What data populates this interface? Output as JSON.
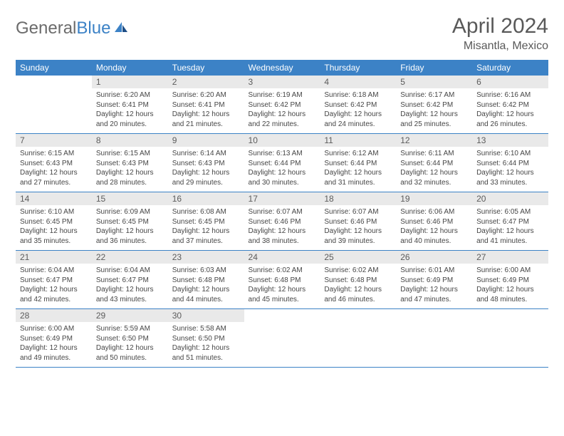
{
  "brand": {
    "textGray": "General",
    "textBlue": "Blue"
  },
  "title": "April 2024",
  "location": "Misantla, Mexico",
  "colors": {
    "headerBg": "#3c82c6",
    "headerText": "#ffffff",
    "dayNumBg": "#e9e9e9",
    "bodyText": "#464646",
    "pageBg": "#ffffff",
    "titleText": "#595959"
  },
  "weekdays": [
    "Sunday",
    "Monday",
    "Tuesday",
    "Wednesday",
    "Thursday",
    "Friday",
    "Saturday"
  ],
  "grid": [
    [
      null,
      {
        "n": "1",
        "sr": "6:20 AM",
        "ss": "6:41 PM",
        "dl": "12 hours and 20 minutes."
      },
      {
        "n": "2",
        "sr": "6:20 AM",
        "ss": "6:41 PM",
        "dl": "12 hours and 21 minutes."
      },
      {
        "n": "3",
        "sr": "6:19 AM",
        "ss": "6:42 PM",
        "dl": "12 hours and 22 minutes."
      },
      {
        "n": "4",
        "sr": "6:18 AM",
        "ss": "6:42 PM",
        "dl": "12 hours and 24 minutes."
      },
      {
        "n": "5",
        "sr": "6:17 AM",
        "ss": "6:42 PM",
        "dl": "12 hours and 25 minutes."
      },
      {
        "n": "6",
        "sr": "6:16 AM",
        "ss": "6:42 PM",
        "dl": "12 hours and 26 minutes."
      }
    ],
    [
      {
        "n": "7",
        "sr": "6:15 AM",
        "ss": "6:43 PM",
        "dl": "12 hours and 27 minutes."
      },
      {
        "n": "8",
        "sr": "6:15 AM",
        "ss": "6:43 PM",
        "dl": "12 hours and 28 minutes."
      },
      {
        "n": "9",
        "sr": "6:14 AM",
        "ss": "6:43 PM",
        "dl": "12 hours and 29 minutes."
      },
      {
        "n": "10",
        "sr": "6:13 AM",
        "ss": "6:44 PM",
        "dl": "12 hours and 30 minutes."
      },
      {
        "n": "11",
        "sr": "6:12 AM",
        "ss": "6:44 PM",
        "dl": "12 hours and 31 minutes."
      },
      {
        "n": "12",
        "sr": "6:11 AM",
        "ss": "6:44 PM",
        "dl": "12 hours and 32 minutes."
      },
      {
        "n": "13",
        "sr": "6:10 AM",
        "ss": "6:44 PM",
        "dl": "12 hours and 33 minutes."
      }
    ],
    [
      {
        "n": "14",
        "sr": "6:10 AM",
        "ss": "6:45 PM",
        "dl": "12 hours and 35 minutes."
      },
      {
        "n": "15",
        "sr": "6:09 AM",
        "ss": "6:45 PM",
        "dl": "12 hours and 36 minutes."
      },
      {
        "n": "16",
        "sr": "6:08 AM",
        "ss": "6:45 PM",
        "dl": "12 hours and 37 minutes."
      },
      {
        "n": "17",
        "sr": "6:07 AM",
        "ss": "6:46 PM",
        "dl": "12 hours and 38 minutes."
      },
      {
        "n": "18",
        "sr": "6:07 AM",
        "ss": "6:46 PM",
        "dl": "12 hours and 39 minutes."
      },
      {
        "n": "19",
        "sr": "6:06 AM",
        "ss": "6:46 PM",
        "dl": "12 hours and 40 minutes."
      },
      {
        "n": "20",
        "sr": "6:05 AM",
        "ss": "6:47 PM",
        "dl": "12 hours and 41 minutes."
      }
    ],
    [
      {
        "n": "21",
        "sr": "6:04 AM",
        "ss": "6:47 PM",
        "dl": "12 hours and 42 minutes."
      },
      {
        "n": "22",
        "sr": "6:04 AM",
        "ss": "6:47 PM",
        "dl": "12 hours and 43 minutes."
      },
      {
        "n": "23",
        "sr": "6:03 AM",
        "ss": "6:48 PM",
        "dl": "12 hours and 44 minutes."
      },
      {
        "n": "24",
        "sr": "6:02 AM",
        "ss": "6:48 PM",
        "dl": "12 hours and 45 minutes."
      },
      {
        "n": "25",
        "sr": "6:02 AM",
        "ss": "6:48 PM",
        "dl": "12 hours and 46 minutes."
      },
      {
        "n": "26",
        "sr": "6:01 AM",
        "ss": "6:49 PM",
        "dl": "12 hours and 47 minutes."
      },
      {
        "n": "27",
        "sr": "6:00 AM",
        "ss": "6:49 PM",
        "dl": "12 hours and 48 minutes."
      }
    ],
    [
      {
        "n": "28",
        "sr": "6:00 AM",
        "ss": "6:49 PM",
        "dl": "12 hours and 49 minutes."
      },
      {
        "n": "29",
        "sr": "5:59 AM",
        "ss": "6:50 PM",
        "dl": "12 hours and 50 minutes."
      },
      {
        "n": "30",
        "sr": "5:58 AM",
        "ss": "6:50 PM",
        "dl": "12 hours and 51 minutes."
      },
      null,
      null,
      null,
      null
    ]
  ],
  "labels": {
    "sunrise": "Sunrise:",
    "sunset": "Sunset:",
    "daylight": "Daylight:"
  }
}
